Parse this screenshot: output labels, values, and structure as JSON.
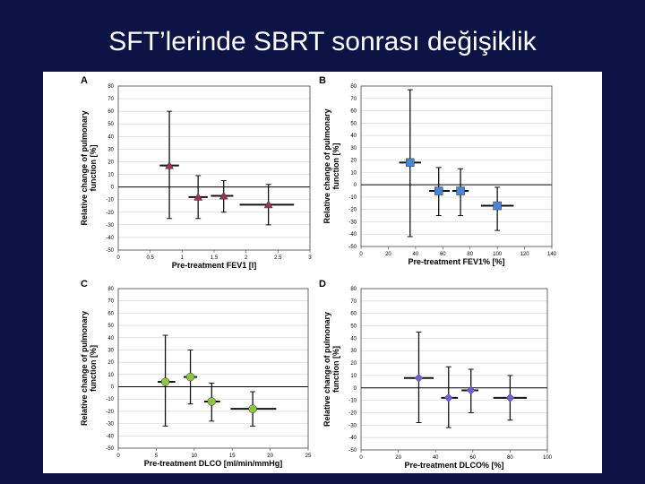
{
  "slide": {
    "title": "SFT’lerinde SBRT sonrası değişiklik"
  },
  "colors": {
    "background": "#0c1446",
    "A": "#a0305a",
    "B": "#4a86d8",
    "C": "#8cc63e",
    "D": "#6f5fd8"
  },
  "chart_data": [
    {
      "panel": "A",
      "type": "scatter",
      "xlabel": "Pre-treatment FEV1 [l]",
      "ylabel": "Relative change of pulmonary function [%]",
      "xlim": [
        0,
        3
      ],
      "ylim": [
        -50,
        80
      ],
      "xticks": [
        "0",
        "0.5",
        "1",
        "1.5",
        "2",
        "2.5",
        "3"
      ],
      "yticks": [
        "-50",
        "-40",
        "-30",
        "-20",
        "-10",
        "0",
        "10",
        "20",
        "30",
        "40",
        "50",
        "60",
        "70",
        "80"
      ],
      "marker": "triangle",
      "points": [
        {
          "x": 0.8,
          "y": 17,
          "xmin": 0.65,
          "xmax": 0.95,
          "ymin": -25,
          "ymax": 60
        },
        {
          "x": 1.25,
          "y": -8,
          "xmin": 1.1,
          "xmax": 1.4,
          "ymin": -25,
          "ymax": 9
        },
        {
          "x": 1.65,
          "y": -7,
          "xmin": 1.45,
          "xmax": 1.8,
          "ymin": -20,
          "ymax": 5
        },
        {
          "x": 2.35,
          "y": -14,
          "xmin": 1.9,
          "xmax": 2.75,
          "ymin": -30,
          "ymax": 2
        }
      ]
    },
    {
      "panel": "B",
      "type": "scatter",
      "xlabel": "Pre-treatment FEV1% [%]",
      "ylabel": "Relative change of pulmonary function [%]",
      "xlim": [
        0,
        140
      ],
      "ylim": [
        -50,
        80
      ],
      "xticks": [
        "0",
        "20",
        "40",
        "60",
        "80",
        "100",
        "120",
        "140"
      ],
      "yticks": [
        "-50",
        "-40",
        "-30",
        "-20",
        "-10",
        "0",
        "10",
        "20",
        "30",
        "40",
        "50",
        "60",
        "70",
        "80"
      ],
      "marker": "square",
      "points": [
        {
          "x": 36,
          "y": 18,
          "xmin": 28,
          "xmax": 44,
          "ymin": -42,
          "ymax": 77
        },
        {
          "x": 57,
          "y": -5,
          "xmin": 50,
          "xmax": 65,
          "ymin": -25,
          "ymax": 14
        },
        {
          "x": 73,
          "y": -5,
          "xmin": 67,
          "xmax": 79,
          "ymin": -25,
          "ymax": 13
        },
        {
          "x": 100,
          "y": -17,
          "xmin": 88,
          "xmax": 112,
          "ymin": -37,
          "ymax": -2
        }
      ]
    },
    {
      "panel": "C",
      "type": "scatter",
      "xlabel": "Pre-treatment DLCO [ml/min/mmHg]",
      "ylabel": "Relative change of pulmonary function [%]",
      "xlim": [
        0,
        25
      ],
      "ylim": [
        -50,
        80
      ],
      "xticks": [
        "0",
        "5",
        "10",
        "15",
        "20",
        "25"
      ],
      "yticks": [
        "-50",
        "-40",
        "-30",
        "-20",
        "-10",
        "0",
        "10",
        "20",
        "30",
        "40",
        "50",
        "60",
        "70",
        "80"
      ],
      "marker": "circle",
      "points": [
        {
          "x": 6.2,
          "y": 4,
          "xmin": 5.2,
          "xmax": 7.5,
          "ymin": -32,
          "ymax": 42
        },
        {
          "x": 9.5,
          "y": 8,
          "xmin": 8.6,
          "xmax": 10.4,
          "ymin": -14,
          "ymax": 30
        },
        {
          "x": 12.3,
          "y": -12,
          "xmin": 11.3,
          "xmax": 13.4,
          "ymin": -28,
          "ymax": 3
        },
        {
          "x": 17.7,
          "y": -18,
          "xmin": 14.8,
          "xmax": 20.8,
          "ymin": -32,
          "ymax": -4
        }
      ]
    },
    {
      "panel": "D",
      "type": "scatter",
      "xlabel": "Pre-treatment DLCO% [%]",
      "ylabel": "Relative change of pulmonary function [%]",
      "xlim": [
        0,
        100
      ],
      "ylim": [
        -50,
        80
      ],
      "xticks": [
        "0",
        "20",
        "40",
        "60",
        "80",
        "100"
      ],
      "yticks": [
        "-50",
        "-40",
        "-30",
        "-20",
        "-10",
        "0",
        "10",
        "20",
        "30",
        "40",
        "50",
        "60",
        "70",
        "80"
      ],
      "marker": "diamond",
      "points": [
        {
          "x": 31,
          "y": 8,
          "xmin": 23,
          "xmax": 39,
          "ymin": -28,
          "ymax": 45
        },
        {
          "x": 47,
          "y": -8,
          "xmin": 43,
          "xmax": 52,
          "ymin": -32,
          "ymax": 17
        },
        {
          "x": 59,
          "y": -2,
          "xmin": 54,
          "xmax": 63,
          "ymin": -20,
          "ymax": 15
        },
        {
          "x": 80,
          "y": -8,
          "xmin": 71,
          "xmax": 89,
          "ymin": -26,
          "ymax": 10
        }
      ]
    }
  ]
}
